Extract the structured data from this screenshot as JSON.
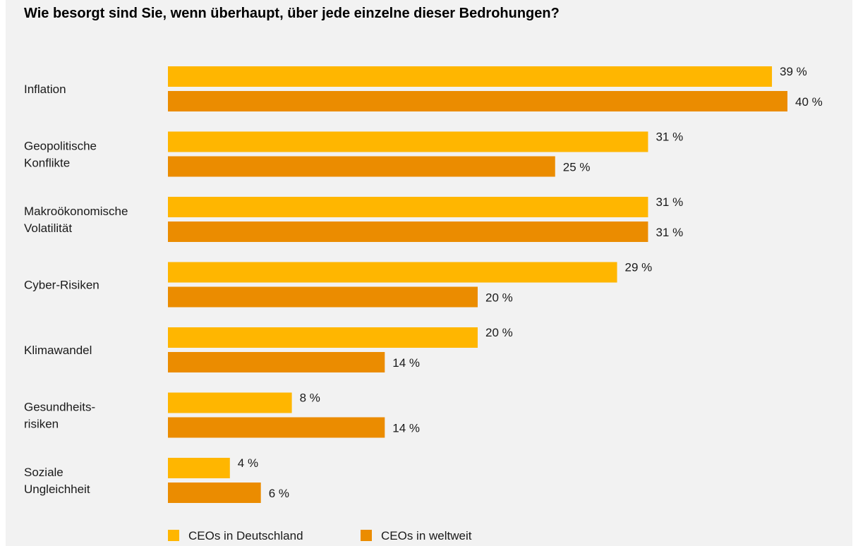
{
  "chart_data": {
    "type": "bar",
    "orientation": "horizontal",
    "title": "Wie besorgt sind Sie, wenn überhaupt, über jede einzelne dieser Bedrohungen?",
    "categories": [
      [
        "Inflation"
      ],
      [
        "Geopolitische",
        "Konflikte"
      ],
      [
        "Makroökonomische",
        "Volatilität"
      ],
      [
        "Cyber-Risiken"
      ],
      [
        "Klimawandel"
      ],
      [
        "Gesundheits-",
        "risiken"
      ],
      [
        "Soziale",
        "Ungleichheit"
      ]
    ],
    "series": [
      {
        "name": "CEOs in Deutschland",
        "color": "#ffb600",
        "values": [
          39,
          31,
          31,
          29,
          20,
          8,
          4
        ]
      },
      {
        "name": "CEOs in weltweit",
        "color": "#eb8c00",
        "values": [
          40,
          25,
          31,
          20,
          14,
          14,
          6
        ]
      }
    ],
    "value_suffix": " %",
    "legend_position": "bottom",
    "grid": false
  }
}
